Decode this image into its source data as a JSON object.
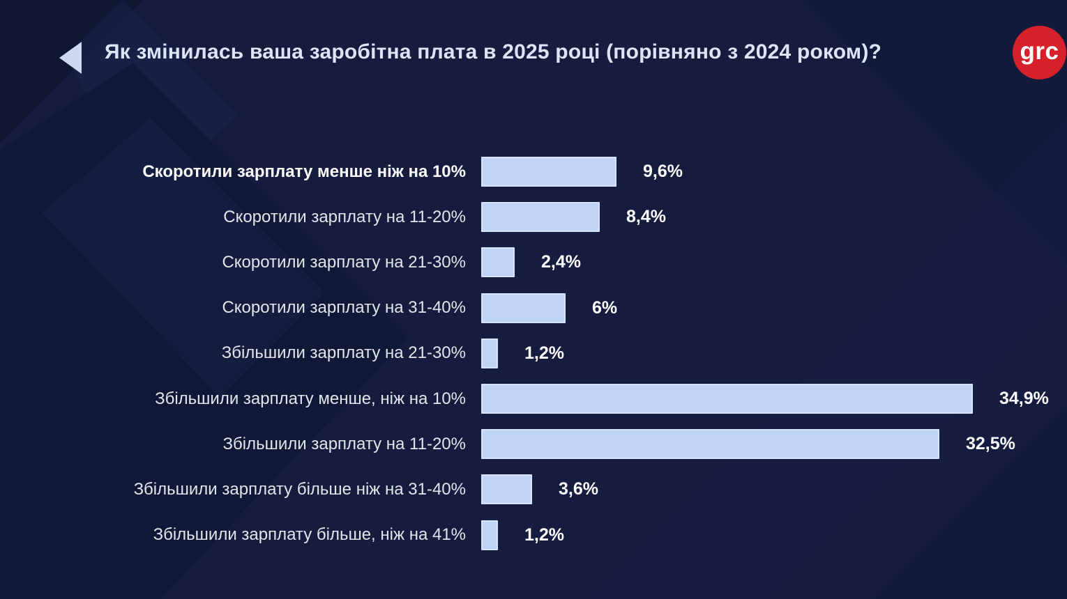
{
  "header": {
    "title": "Як змінилась ваша заробітна плата в 2025 році (порівняно з 2024 роком)?",
    "back_icon": "left-triangle",
    "logo_text": "grc"
  },
  "colors": {
    "background": "#151c3e",
    "bar_fill": "#c0d4f6",
    "label_text": "#e3e5eb",
    "emphasized_label_text": "#ffffff",
    "value_text": "#ffffff",
    "title_text": "#dce5f6",
    "logo_red": "#d6212a",
    "back_arrow": "#ccd9ef"
  },
  "chart_data": {
    "type": "bar",
    "orientation": "horizontal",
    "title": "Як змінилась ваша заробітна плата в 2025 році (порівняно з 2024 роком)?",
    "categories": [
      "Скоротили зарплату менше ніж на 10%",
      "Скоротили зарплату на 11-20%",
      "Скоротили зарплату на 21-30%",
      "Скоротили зарплату на 31-40%",
      "Збільшили зарплату на 21-30%",
      "Збільшили зарплату менше, ніж на 10%",
      "Збільшили зарплату на 11-20%",
      "Збільшили зарплату більше ніж на 31-40%",
      "Збільшили зарплату більше, ніж на 41%"
    ],
    "values": [
      9.6,
      8.4,
      2.4,
      6,
      1.2,
      34.9,
      32.5,
      3.6,
      1.2
    ],
    "value_labels": [
      "9,6%",
      "8,4%",
      "2,4%",
      "6%",
      "1,2%",
      "34,9%",
      "32,5%",
      "3,6%",
      "1,2%"
    ],
    "xlim": [
      0,
      35
    ],
    "grid": false,
    "legend": false,
    "emphasized_category_index": 0
  }
}
